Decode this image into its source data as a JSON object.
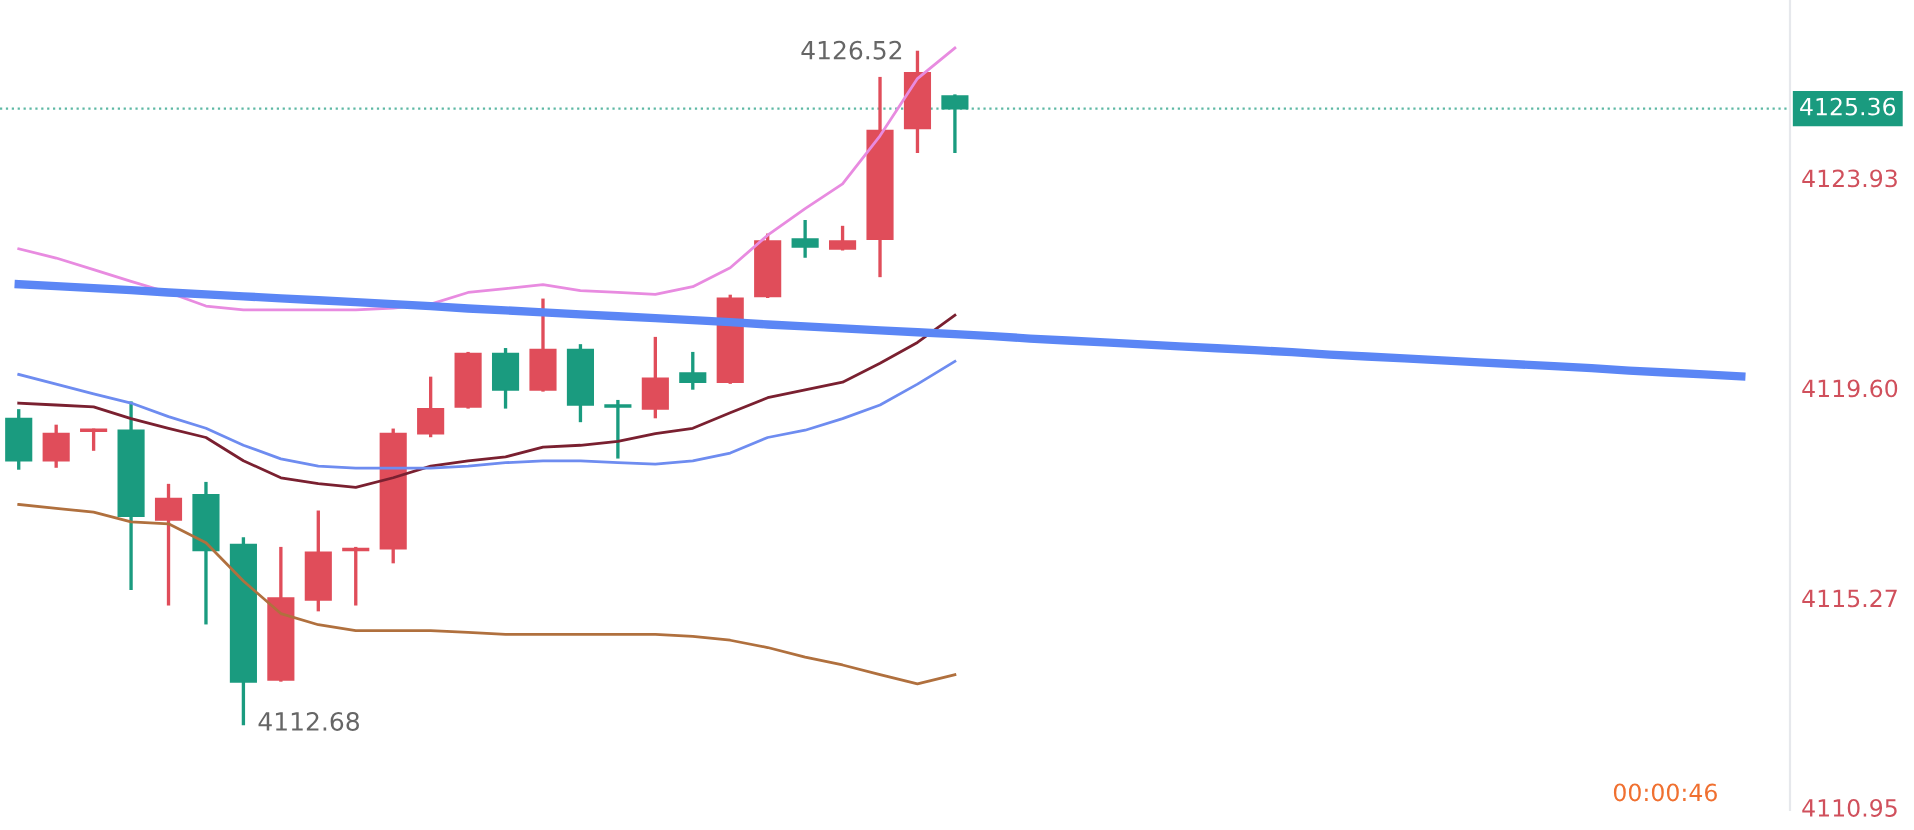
{
  "chart_data": {
    "type": "candlestick",
    "categories": [
      null,
      null,
      null,
      null,
      null,
      null,
      null,
      null,
      null,
      null,
      null,
      null,
      null,
      null,
      null,
      null,
      null,
      null,
      null,
      null,
      null,
      null,
      null,
      null,
      null,
      null,
      null,
      null,
      null,
      null,
      null,
      null,
      null,
      null,
      null,
      null,
      null,
      null,
      null,
      null,
      null,
      null,
      null,
      null,
      null,
      null,
      null
    ],
    "ohlc": [
      [
        4118.97,
        4119.13,
        4117.95,
        4118.1
      ],
      [
        4118.1,
        4118.81,
        4117.99,
        4118.66
      ],
      [
        4118.71,
        4118.73,
        4118.34,
        4118.73
      ],
      [
        4118.73,
        4119.29,
        4115.47,
        4116.96
      ],
      [
        4116.88,
        4117.59,
        4115.15,
        4117.32
      ],
      [
        4117.4,
        4117.63,
        4114.76,
        4116.25
      ],
      [
        4116.37,
        4116.49,
        4112.68,
        4113.54
      ],
      [
        4113.58,
        4116.29,
        4113.58,
        4115.27
      ],
      [
        4115.23,
        4117.04,
        4115.03,
        4116.21
      ],
      [
        4116.25,
        4116.29,
        4115.15,
        4116.29
      ],
      [
        4116.29,
        4118.73,
        4116.02,
        4118.66
      ],
      [
        4118.66,
        4119.8,
        4118.62,
        4119.17
      ],
      [
        4119.21,
        4120.31,
        4119.21,
        4120.31
      ],
      [
        4120.31,
        4120.39,
        4119.21,
        4119.56
      ],
      [
        4119.56,
        4121.41,
        4119.56,
        4120.39
      ],
      [
        4120.39,
        4120.47,
        4118.93,
        4119.25
      ],
      [
        4119.25,
        4119.32,
        4118.18,
        4119.21
      ],
      [
        4119.17,
        4120.62,
        4119.01,
        4119.8
      ],
      [
        4119.91,
        4120.31,
        4119.6,
        4119.72
      ],
      [
        4119.72,
        4121.49,
        4119.72,
        4121.45
      ],
      [
        4121.49,
        4122.75,
        4121.49,
        4122.63
      ],
      [
        4122.67,
        4123.03,
        4122.32,
        4122.51
      ],
      [
        4122.47,
        4122.91,
        4122.47,
        4122.63
      ],
      [
        4122.67,
        4125.98,
        4121.92,
        4124.91
      ],
      [
        4124.95,
        4126.52,
        4124.48,
        4126.1
      ],
      [
        4125.62,
        4125.62,
        4124.48,
        4125.36
      ],
      null,
      null,
      null,
      null,
      null,
      null,
      null,
      null,
      null,
      null,
      null,
      null,
      null,
      null,
      null,
      null,
      null,
      null,
      null,
      null,
      null
    ],
    "colors": [
      "#1a9b7f",
      "#e04d5a",
      "#e04d5a",
      "#1a9b7f",
      "#e04d5a",
      "#1a9b7f",
      "#1a9b7f",
      "#e04d5a",
      "#e04d5a",
      "#e04d5a",
      "#e04d5a",
      "#e04d5a",
      "#e04d5a",
      "#1a9b7f",
      "#e04d5a",
      "#1a9b7f",
      "#1a9b7f",
      "#e04d5a",
      "#1a9b7f",
      "#e04d5a",
      "#e04d5a",
      "#1a9b7f",
      "#e04d5a",
      "#e04d5a",
      "#e04d5a",
      "#1a9b7f",
      null,
      null,
      null,
      null,
      null,
      null,
      null,
      null,
      null,
      null,
      null,
      null,
      null,
      null,
      null,
      null,
      null,
      null,
      null,
      null,
      null
    ],
    "series": [
      {
        "type": "line",
        "color": "#e88be0",
        "values": [
          4122.47,
          4122.28,
          4122.04,
          4121.8,
          4121.57,
          4121.29,
          4121.21,
          4121.21,
          4121.21,
          4121.21,
          4121.25,
          4121.33,
          4121.57,
          4121.65,
          4121.73,
          4121.61,
          4121.57,
          4121.53,
          4121.69,
          4122.08,
          4122.75,
          4123.3,
          4123.81,
          4124.8,
          4125.98,
          4126.61,
          null,
          null,
          null,
          null,
          null,
          null,
          null,
          null,
          null,
          null,
          null,
          null,
          null,
          null,
          null,
          null,
          null,
          null,
          null,
          null,
          null
        ]
      },
      {
        "type": "line",
        "color": "#7a2030",
        "values": [
          4119.29,
          4119.25,
          4119.21,
          4118.97,
          4118.77,
          4118.58,
          4118.1,
          4117.75,
          4117.63,
          4117.55,
          4117.75,
          4117.99,
          4118.1,
          4118.18,
          4118.38,
          4118.42,
          4118.5,
          4118.66,
          4118.77,
          4119.09,
          4119.4,
          4119.56,
          4119.72,
          4120.11,
          4120.54,
          4121.1,
          null,
          null,
          null,
          null,
          null,
          null,
          null,
          null,
          null,
          null,
          null,
          null,
          null,
          null,
          null,
          null,
          null,
          null,
          null,
          null,
          null
        ]
      },
      {
        "type": "line",
        "color": "#6e8cf0",
        "values": [
          4119.88,
          4119.68,
          4119.48,
          4119.29,
          4119.01,
          4118.77,
          4118.42,
          4118.14,
          4117.99,
          4117.95,
          4117.95,
          4117.95,
          4117.99,
          4118.06,
          4118.1,
          4118.1,
          4118.06,
          4118.03,
          4118.1,
          4118.26,
          4118.58,
          4118.73,
          4118.97,
          4119.25,
          4119.68,
          4120.15,
          null,
          null,
          null,
          null,
          null,
          null,
          null,
          null,
          null,
          null,
          null,
          null,
          null,
          null,
          null,
          null,
          null,
          null,
          null,
          null,
          null
        ]
      },
      {
        "type": "line",
        "color": "#b0703e",
        "values": [
          4117.2,
          4117.12,
          4117.04,
          4116.84,
          4116.8,
          4116.41,
          4115.62,
          4114.95,
          4114.72,
          4114.6,
          4114.6,
          4114.6,
          4114.56,
          4114.52,
          4114.52,
          4114.52,
          4114.52,
          4114.52,
          4114.48,
          4114.4,
          4114.25,
          4114.05,
          4113.89,
          4113.69,
          4113.5,
          4113.69,
          null,
          null,
          null,
          null,
          null,
          null,
          null,
          null,
          null,
          null,
          null,
          null,
          null,
          null,
          null,
          null,
          null,
          null,
          null,
          null,
          null
        ]
      },
      {
        "type": "line",
        "color": "#5b86f5",
        "values": [
          4121.74,
          4121.7,
          4121.66,
          4121.62,
          4121.57,
          4121.53,
          4121.49,
          4121.45,
          4121.41,
          4121.37,
          4121.33,
          4121.29,
          4121.24,
          4121.2,
          4121.16,
          4121.12,
          4121.08,
          4121.04,
          4121.0,
          4120.96,
          4120.91,
          4120.87,
          4120.83,
          4120.79,
          4120.75,
          4120.71,
          4120.67,
          4120.62,
          4120.58,
          4120.54,
          4120.5,
          4120.46,
          4120.42,
          4120.38,
          4120.34,
          4120.29,
          4120.25,
          4120.21,
          4120.17,
          4120.13,
          4120.09,
          4120.05,
          4120.01,
          4119.96,
          4119.92,
          4119.88,
          4119.84
        ]
      }
    ],
    "ylim": [
      4110.9,
      4127.6
    ],
    "yticks": [
      {
        "value": 4110.95,
        "label": "4110.95"
      },
      4115.27,
      {
        "value": 4119.6,
        "label": "4119.60"
      },
      4123.93
    ],
    "ref_lines": [
      {
        "axis": "y",
        "value": 4125.36,
        "label": "4125.36",
        "color": "#1a9b7f",
        "line_style": "dotted"
      }
    ],
    "annotations": [
      "4126.52",
      "4112.68",
      "00:00:46"
    ],
    "tick_labels": "y",
    "grid": false,
    "legend": false
  }
}
